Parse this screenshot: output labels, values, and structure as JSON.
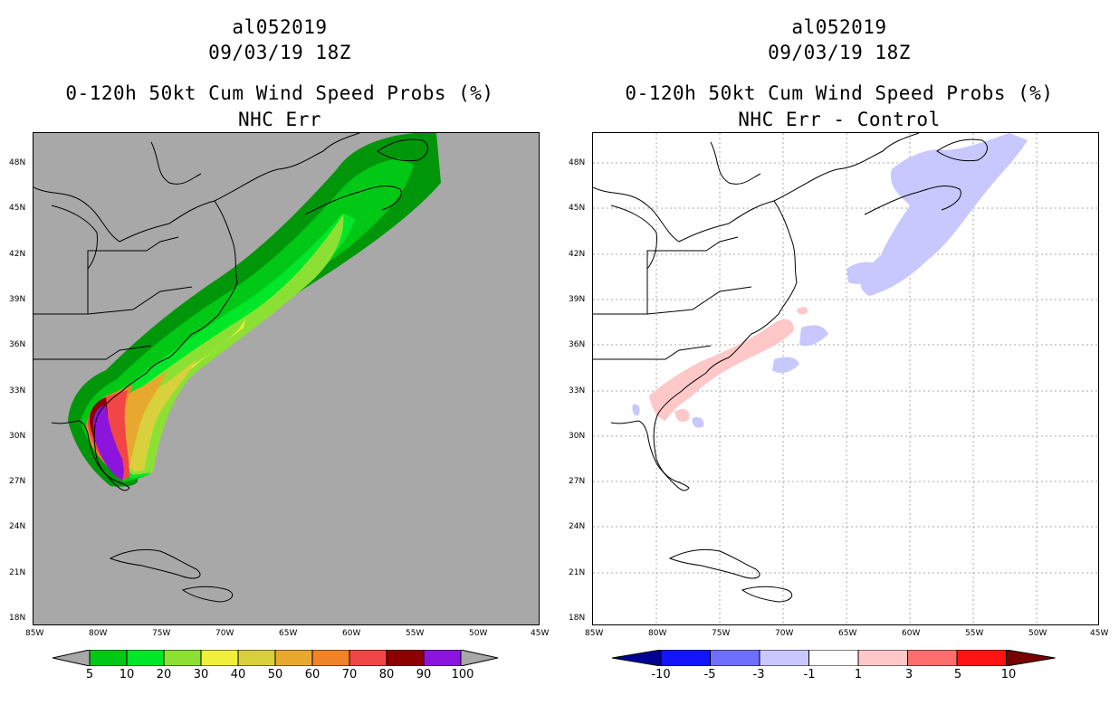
{
  "panels": [
    {
      "id": "left",
      "storm_id": "al052019",
      "datetime": "09/03/19 18Z",
      "product": "0-120h 50kt Cum Wind Speed Probs (%)",
      "subtitle": "NHC Err",
      "background": "#a8a8a8",
      "colorbar": {
        "labels": [
          "5",
          "10",
          "20",
          "30",
          "40",
          "50",
          "60",
          "70",
          "80",
          "90",
          "100"
        ],
        "colors": [
          "#00960a",
          "#00c814",
          "#00e628",
          "#8ce034",
          "#f0f03c",
          "#d8d03c",
          "#e8a830",
          "#f08228",
          "#f04646",
          "#8c0000",
          "#8c14dc"
        ],
        "end_color": "#a8a8a8"
      }
    },
    {
      "id": "right",
      "storm_id": "al052019",
      "datetime": "09/03/19 18Z",
      "product": "0-120h 50kt Cum Wind Speed Probs (%)",
      "subtitle": "NHC Err - Control",
      "background": "#ffffff",
      "colorbar": {
        "labels": [
          "-10",
          "-5",
          "-3",
          "-1",
          "1",
          "3",
          "5",
          "10"
        ],
        "colors": [
          "#000096",
          "#1414ff",
          "#6e6eff",
          "#c8c8ff",
          "#ffffff",
          "#ffc8c8",
          "#ff6e6e",
          "#ff1414"
        ],
        "start_color": "#000096",
        "end_color": "#780000"
      }
    }
  ],
  "axes": {
    "lon_labels": [
      "85W",
      "80W",
      "75W",
      "70W",
      "65W",
      "60W",
      "55W",
      "50W",
      "45W"
    ],
    "lat_labels": [
      "48N",
      "45N",
      "42N",
      "39N",
      "36N",
      "33N",
      "30N",
      "27N",
      "24N",
      "21N",
      "18N"
    ]
  },
  "colors": {
    "coast": "#000000",
    "grid": "#aaaaaa"
  }
}
